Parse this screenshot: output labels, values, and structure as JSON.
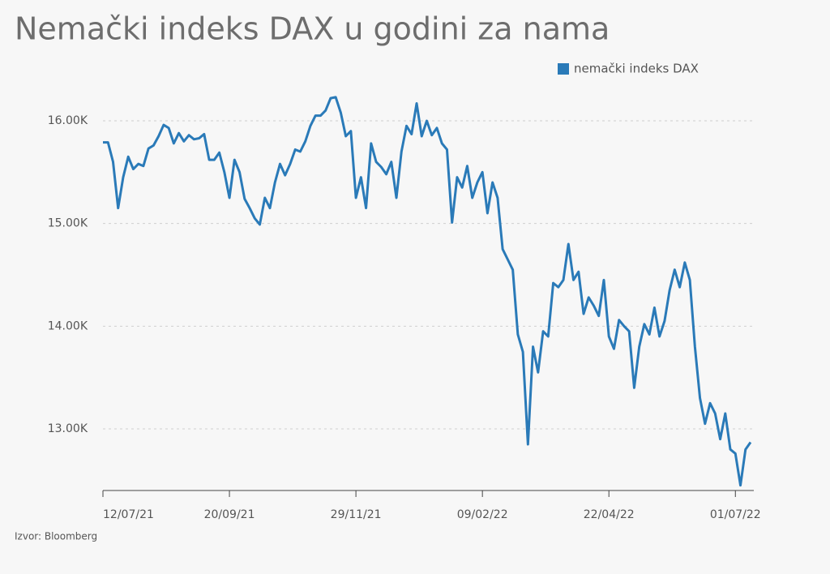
{
  "chart_data": {
    "type": "line",
    "title": "Nemački indeks DAX u godini za nama",
    "source": "Izvor: Bloomberg",
    "legend": "top-right",
    "grid": true,
    "categories": [
      "12/07/21",
      null,
      null,
      null,
      null,
      null,
      null,
      null,
      null,
      null,
      null,
      null,
      null,
      null,
      null,
      null,
      null,
      null,
      null,
      null,
      null,
      null,
      null,
      null,
      null,
      "20/09/21",
      null,
      null,
      null,
      null,
      null,
      null,
      null,
      null,
      null,
      null,
      null,
      null,
      null,
      null,
      null,
      null,
      null,
      null,
      null,
      null,
      null,
      null,
      null,
      null,
      "29/11/21",
      null,
      null,
      null,
      null,
      null,
      null,
      null,
      null,
      null,
      null,
      null,
      null,
      null,
      null,
      null,
      null,
      null,
      null,
      null,
      null,
      null,
      null,
      null,
      null,
      "09/02/22",
      null,
      null,
      null,
      null,
      null,
      null,
      null,
      null,
      null,
      null,
      null,
      null,
      null,
      null,
      null,
      null,
      null,
      null,
      null,
      null,
      null,
      null,
      null,
      null,
      "22/04/22",
      null,
      null,
      null,
      null,
      null,
      null,
      null,
      null,
      null,
      null,
      null,
      null,
      null,
      null,
      null,
      null,
      null,
      null,
      null,
      null,
      null,
      null,
      null,
      null,
      "01/07/22",
      null,
      null,
      null
    ],
    "series": [
      {
        "name": "nemački indeks DAX",
        "color": "#2a7ab8",
        "values": [
          15790,
          15790,
          15600,
          15150,
          15450,
          15650,
          15530,
          15580,
          15560,
          15730,
          15760,
          15850,
          15960,
          15930,
          15780,
          15880,
          15800,
          15860,
          15820,
          15830,
          15870,
          15620,
          15620,
          15690,
          15500,
          15250,
          15620,
          15500,
          15240,
          15150,
          15050,
          14990,
          15250,
          15150,
          15400,
          15580,
          15470,
          15580,
          15720,
          15700,
          15800,
          15950,
          16050,
          16050,
          16100,
          16220,
          16230,
          16080,
          15850,
          15900,
          15250,
          15450,
          15150,
          15780,
          15600,
          15550,
          15480,
          15600,
          15250,
          15700,
          15950,
          15870,
          16170,
          15850,
          16000,
          15860,
          15930,
          15780,
          15720,
          15010,
          15450,
          15350,
          15560,
          15250,
          15400,
          15500,
          15100,
          15400,
          15250,
          14750,
          14650,
          14550,
          13920,
          13750,
          12850,
          13800,
          13550,
          13950,
          13900,
          14420,
          14380,
          14450,
          14800,
          14450,
          14530,
          14120,
          14280,
          14200,
          14100,
          14450,
          13900,
          13780,
          14060,
          14000,
          13950,
          13400,
          13800,
          14020,
          13920,
          14180,
          13900,
          14050,
          14350,
          14550,
          14380,
          14620,
          14450,
          13800,
          13300,
          13050,
          13250,
          13150,
          12900,
          13150,
          12800,
          12760,
          12450,
          12800,
          12870
        ]
      }
    ],
    "ylim": [
      12400,
      16600
    ],
    "yticks": [
      {
        "value": 13000,
        "label": "13.00K"
      },
      {
        "value": 14000,
        "label": "14.00K"
      },
      {
        "value": 15000,
        "label": "15.00K"
      },
      {
        "value": 16000,
        "label": "16.00K"
      }
    ]
  }
}
